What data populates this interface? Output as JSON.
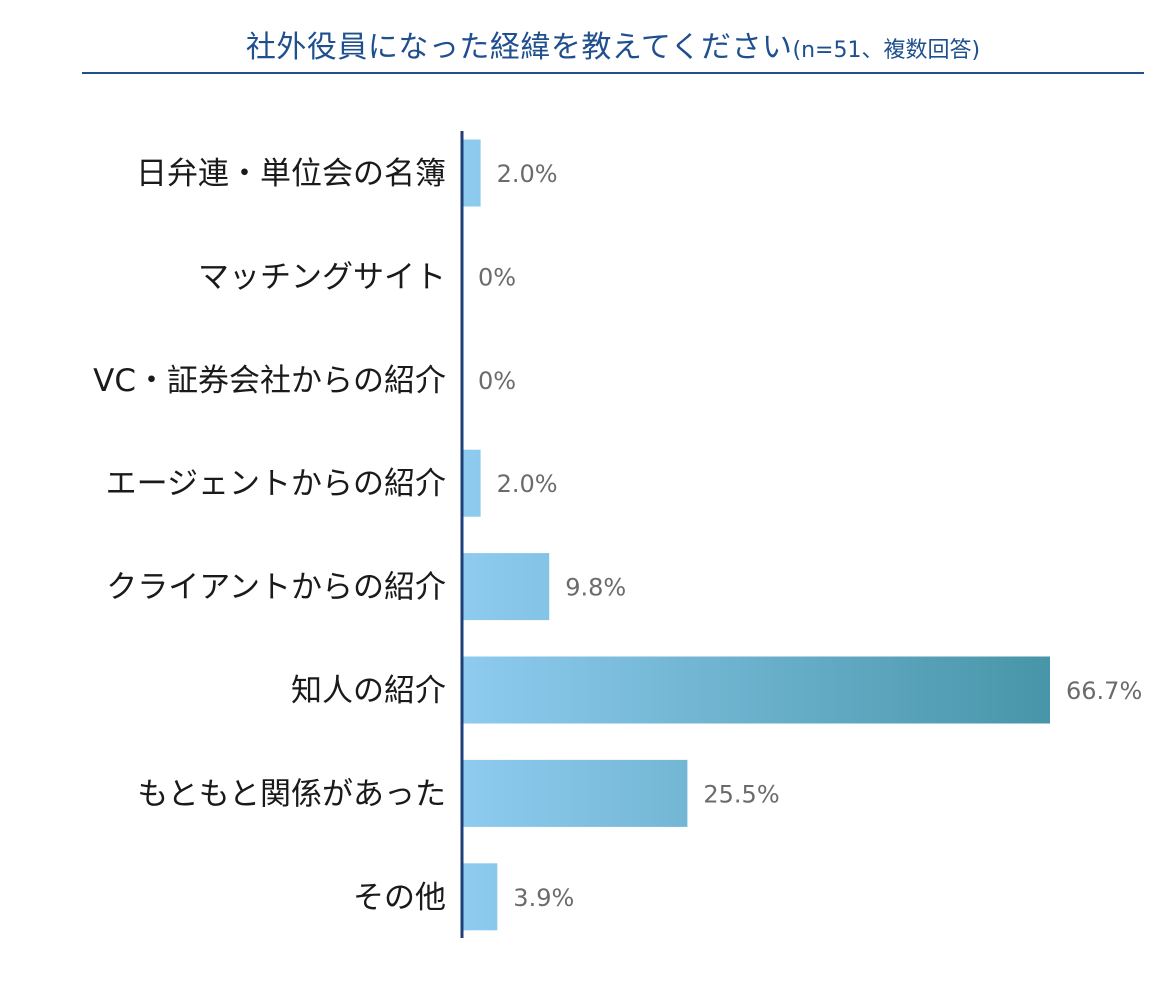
{
  "chart_data": {
    "type": "bar",
    "orientation": "horizontal",
    "title": "社外役員になった経緯を教えてください",
    "subtitle": "(n=51、複数回答)",
    "categories": [
      "日弁連・単位会の名簿",
      "マッチングサイト",
      "VC・証券会社からの紹介",
      "エージェントからの紹介",
      "クライアントからの紹介",
      "知人の紹介",
      "もともと関係があった",
      "その他"
    ],
    "values": [
      2.0,
      0,
      0,
      2.0,
      9.8,
      66.7,
      25.5,
      3.9
    ],
    "value_labels": [
      "2.0%",
      "0%",
      "0%",
      "2.0%",
      "9.8%",
      "66.7%",
      "25.5%",
      "3.9%"
    ],
    "xlabel": "",
    "ylabel": "",
    "xlim": [
      0,
      66.7
    ],
    "grid": false,
    "legend": "none"
  },
  "colors": {
    "title": "#1f4f8e",
    "axis": "#1f3f7a",
    "bar_light": "#8ecbef",
    "bar_dark": "#4795a8",
    "category_text": "#1a1a1a",
    "value_text": "#6b6b6b"
  }
}
